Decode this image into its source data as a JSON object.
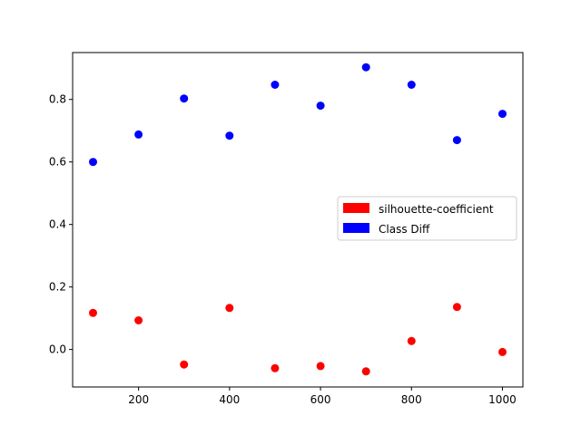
{
  "chart_data": {
    "type": "scatter",
    "title": "",
    "xlabel": "",
    "ylabel": "",
    "xlim": [
      55,
      1045
    ],
    "ylim": [
      -0.12,
      0.95
    ],
    "xticks": [
      200,
      400,
      600,
      800,
      1000
    ],
    "xtick_labels": [
      "200",
      "400",
      "600",
      "800",
      "1000"
    ],
    "yticks": [
      0.0,
      0.2,
      0.4,
      0.6,
      0.8
    ],
    "ytick_labels": [
      "0.0",
      "0.2",
      "0.4",
      "0.6",
      "0.8"
    ],
    "grid": false,
    "legend_position": "center-right",
    "x": [
      100,
      200,
      300,
      400,
      500,
      600,
      700,
      800,
      900,
      1000
    ],
    "series": [
      {
        "name": "silhouette-coefficient",
        "color": "#ff0000",
        "values": [
          0.117,
          0.093,
          -0.048,
          0.133,
          -0.06,
          -0.053,
          -0.07,
          0.027,
          0.136,
          -0.008
        ]
      },
      {
        "name": "Class Diff",
        "color": "#0000ff",
        "values": [
          0.6,
          0.688,
          0.803,
          0.684,
          0.847,
          0.78,
          0.903,
          0.847,
          0.67,
          0.754
        ]
      }
    ]
  }
}
